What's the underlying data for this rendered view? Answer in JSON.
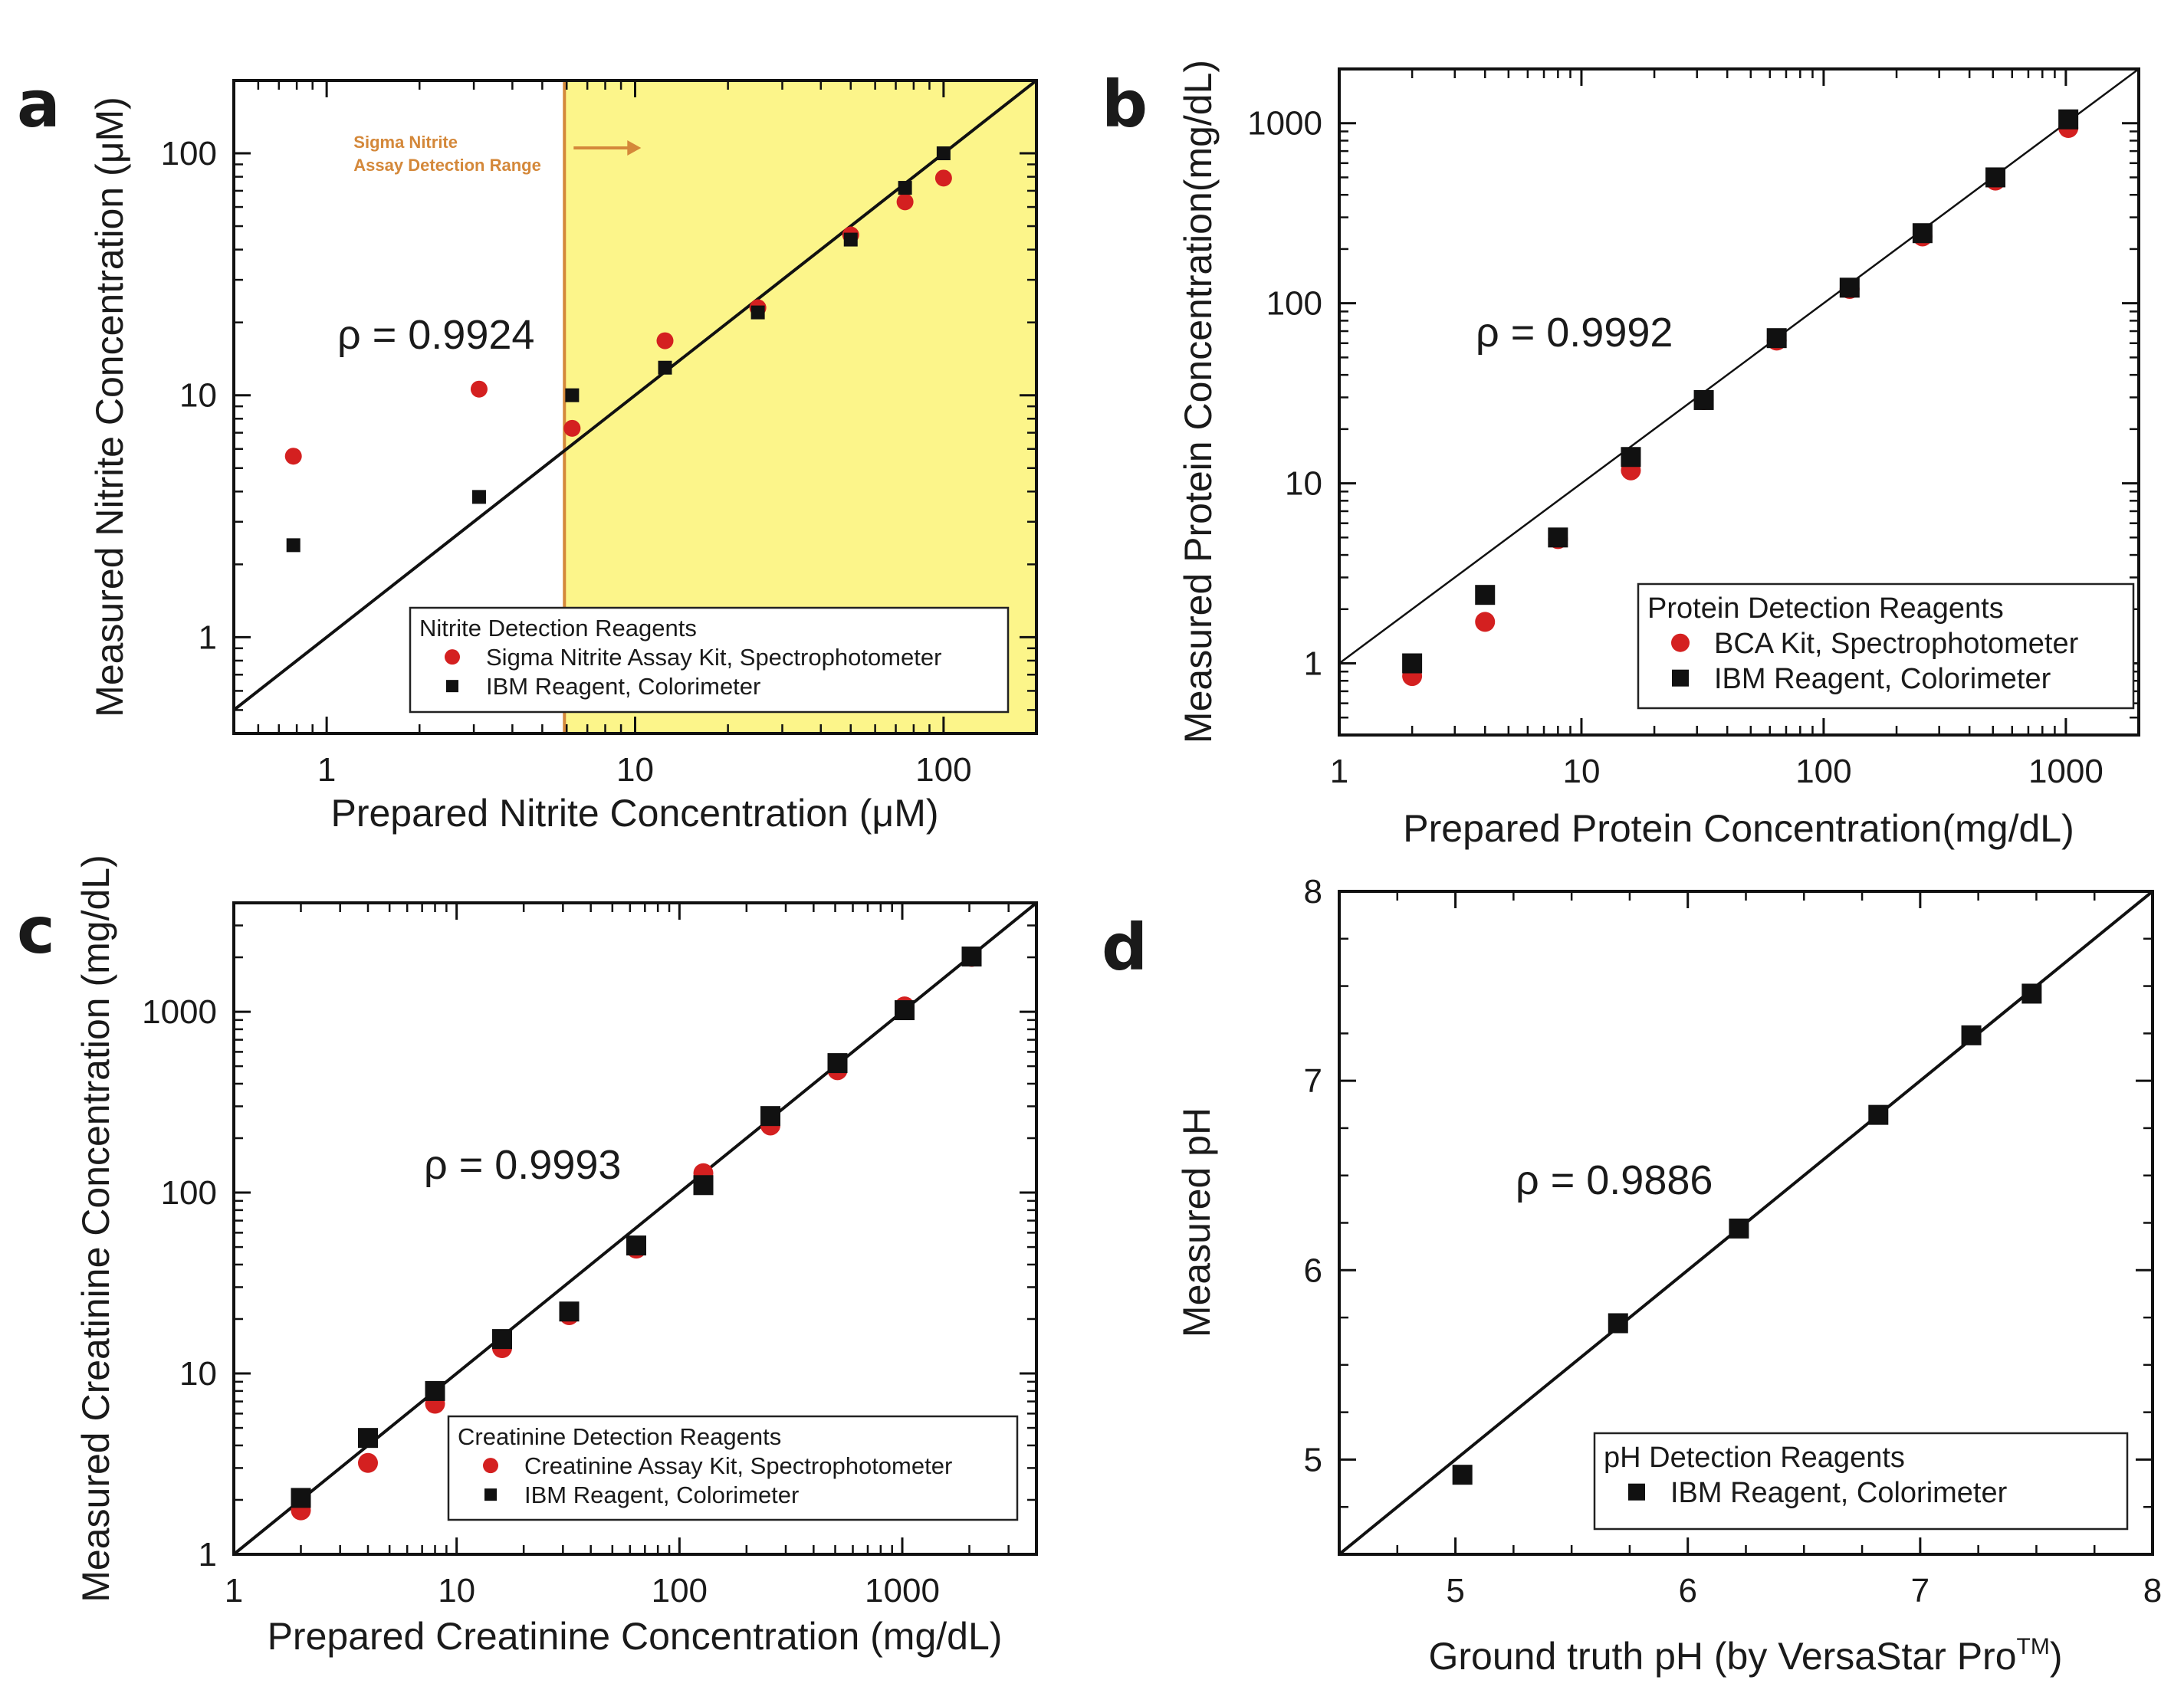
{
  "panels": [
    {
      "id": "a",
      "label": "a"
    },
    {
      "id": "b",
      "label": "b"
    },
    {
      "id": "c",
      "label": "c"
    },
    {
      "id": "d",
      "label": "d"
    }
  ],
  "chart_data": [
    {
      "panel": "a",
      "type": "scatter",
      "xlabel": "Prepared Nitrite Concentration (μM)",
      "ylabel": "Measured Nitrite Concentration (μM)",
      "xscale": "log",
      "yscale": "log",
      "xlim": [
        0.5,
        200
      ],
      "ylim": [
        0.4,
        200
      ],
      "xticks": [
        {
          "v": 1,
          "label": "1"
        },
        {
          "v": 10,
          "label": "10"
        },
        {
          "v": 100,
          "label": "100"
        }
      ],
      "yticks": [
        {
          "v": 1,
          "label": "1"
        },
        {
          "v": 10,
          "label": "10"
        },
        {
          "v": 100,
          "label": "100"
        }
      ],
      "reference_line": "y = x",
      "rho": "ρ = 0.9924",
      "legend_title": "Nitrite Detection Reagents",
      "legend_position": "lower-right",
      "annotation": {
        "text_line1": "Sigma Nitrite",
        "text_line2": "Assay Detection Range",
        "shaded_from_x": 5.9,
        "shade_color": "#fcf58a",
        "line_color": "#d4883a"
      },
      "series": [
        {
          "name": "Sigma Nitrite Assay Kit, Spectrophotometer",
          "marker": "circle",
          "color": "#d42020",
          "x": [
            0.78,
            3.12,
            6.25,
            12.5,
            25,
            50,
            75,
            100
          ],
          "y": [
            5.6,
            10.6,
            7.3,
            16.8,
            23,
            46,
            63,
            79
          ]
        },
        {
          "name": "IBM Reagent, Colorimeter",
          "marker": "square",
          "color": "#111111",
          "x": [
            0.78,
            3.12,
            6.25,
            12.5,
            25,
            50,
            75,
            100
          ],
          "y": [
            2.4,
            3.8,
            10,
            13,
            22,
            44,
            72,
            100
          ]
        }
      ]
    },
    {
      "panel": "b",
      "type": "scatter",
      "xlabel": "Prepared Protein Concentration(mg/dL)",
      "ylabel": "Measured Protein Concentration(mg/dL)",
      "xscale": "log",
      "yscale": "log",
      "xlim": [
        1,
        2000
      ],
      "ylim": [
        0.4,
        2000
      ],
      "xticks": [
        {
          "v": 1,
          "label": "1"
        },
        {
          "v": 10,
          "label": "10"
        },
        {
          "v": 100,
          "label": "100"
        },
        {
          "v": 1000,
          "label": "1000"
        }
      ],
      "yticks": [
        {
          "v": 1,
          "label": "1"
        },
        {
          "v": 10,
          "label": "10"
        },
        {
          "v": 100,
          "label": "100"
        },
        {
          "v": 1000,
          "label": "1000"
        }
      ],
      "reference_line": "y = x",
      "rho": "ρ = 0.9992",
      "legend_title": "Protein Detection Reagents",
      "legend_position": "lower-right",
      "series": [
        {
          "name": "BCA Kit, Spectrophotometer",
          "marker": "circle",
          "color": "#d42020",
          "x": [
            2,
            4,
            8,
            16,
            32,
            64,
            128,
            256,
            512,
            1024
          ],
          "y": [
            0.85,
            1.7,
            4.9,
            11.8,
            29,
            62,
            120,
            235,
            480,
            940
          ]
        },
        {
          "name": "IBM Reagent, Colorimeter",
          "marker": "square",
          "color": "#111111",
          "x": [
            2,
            4,
            8,
            16,
            32,
            64,
            128,
            256,
            512,
            1024
          ],
          "y": [
            1.0,
            2.4,
            5.0,
            14,
            29,
            64,
            122,
            245,
            500,
            1050
          ]
        }
      ]
    },
    {
      "panel": "c",
      "type": "scatter",
      "xlabel": "Prepared Creatinine Concentration (mg/dL)",
      "ylabel": "Measured Creatinine Concentration (mg/dL)",
      "xscale": "log",
      "yscale": "log",
      "xlim": [
        1,
        4000
      ],
      "ylim": [
        1,
        4000
      ],
      "xticks": [
        {
          "v": 1,
          "label": "1"
        },
        {
          "v": 10,
          "label": "10"
        },
        {
          "v": 100,
          "label": "100"
        },
        {
          "v": 1000,
          "label": "1000"
        }
      ],
      "yticks": [
        {
          "v": 1,
          "label": "1"
        },
        {
          "v": 10,
          "label": "10"
        },
        {
          "v": 100,
          "label": "100"
        },
        {
          "v": 1000,
          "label": "1000"
        }
      ],
      "reference_line": "y = x",
      "rho": "ρ = 0.9993",
      "legend_title": "Creatinine Detection Reagents",
      "legend_position": "lower-right",
      "series": [
        {
          "name": "Creatinine Assay Kit, Spectrophotometer",
          "marker": "circle",
          "color": "#d42020",
          "x": [
            2,
            4,
            8,
            16,
            32,
            64,
            128,
            256,
            512,
            1024,
            2048
          ],
          "y": [
            1.75,
            3.2,
            6.8,
            13.8,
            21,
            49,
            128,
            235,
            475,
            1070,
            2010
          ]
        },
        {
          "name": "IBM Reagent, Colorimeter",
          "marker": "square",
          "color": "#111111",
          "x": [
            2,
            4,
            8,
            16,
            32,
            64,
            128,
            256,
            512,
            1024,
            2048
          ],
          "y": [
            2.05,
            4.4,
            8.0,
            15.5,
            22,
            51,
            110,
            265,
            520,
            1020,
            2020
          ]
        }
      ]
    },
    {
      "panel": "d",
      "type": "scatter",
      "xlabel": "Ground truth pH (by VersaStar Pro",
      "xlabel_sup": "TM",
      "xlabel_end": ")",
      "ylabel": "Measured pH",
      "xscale": "linear",
      "yscale": "linear",
      "xlim": [
        4.5,
        8
      ],
      "ylim": [
        4.5,
        8
      ],
      "xticks": [
        {
          "v": 5,
          "label": "5"
        },
        {
          "v": 6,
          "label": "6"
        },
        {
          "v": 7,
          "label": "7"
        },
        {
          "v": 8,
          "label": "8"
        }
      ],
      "yticks": [
        {
          "v": 5,
          "label": "5"
        },
        {
          "v": 6,
          "label": "6"
        },
        {
          "v": 7,
          "label": "7"
        },
        {
          "v": 8,
          "label": "8"
        }
      ],
      "reference_line": "y = x",
      "rho": "ρ = 0.9886",
      "legend_title": "pH Detection Reagents",
      "legend_position": "lower-right",
      "series": [
        {
          "name": "IBM Reagent, Colorimeter",
          "marker": "square",
          "color": "#111111",
          "x": [
            5.03,
            5.7,
            6.22,
            6.82,
            7.22,
            7.48
          ],
          "y": [
            4.92,
            5.72,
            6.22,
            6.82,
            7.24,
            7.46
          ]
        }
      ]
    }
  ]
}
